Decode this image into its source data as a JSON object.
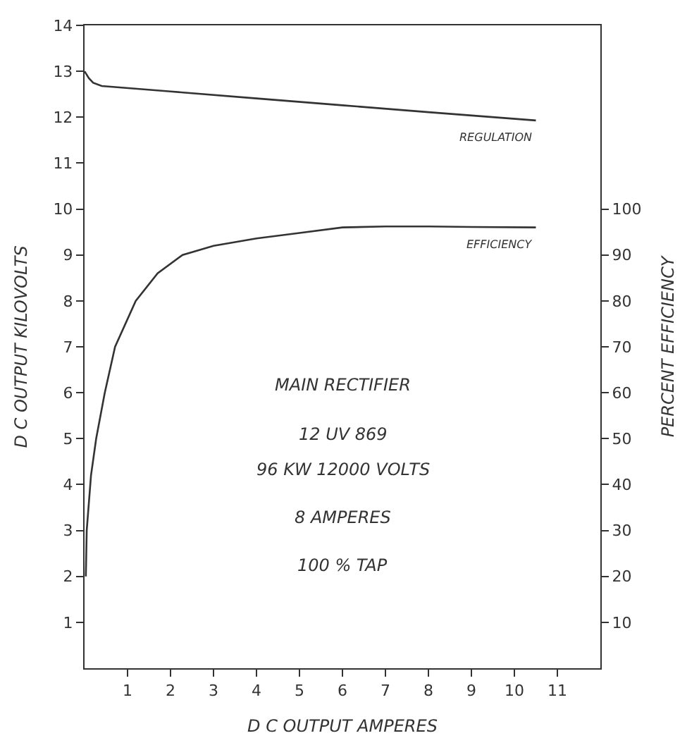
{
  "chart_data": {
    "type": "line",
    "xlabel": "D C OUTPUT AMPERES",
    "ylabel": "D C OUTPUT KILOVOLTS",
    "y2label": "PERCENT EFFICIENCY",
    "series": [
      {
        "name": "REGULATION",
        "color": "#333333",
        "x": [
          0,
          0.1,
          0.2,
          0.4,
          2,
          4,
          6,
          8,
          10.5
        ],
        "values": [
          13.0,
          12.85,
          12.75,
          12.68,
          12.56,
          12.41,
          12.26,
          12.11,
          11.93
        ]
      },
      {
        "name": "EFFICIENCY",
        "color": "#333333",
        "axis": "y2",
        "x": [
          0.03,
          0.05,
          0.15,
          0.27,
          0.47,
          0.71,
          1.19,
          1.7,
          2.28,
          3,
          4,
          5,
          6,
          7,
          8,
          9,
          10.5
        ],
        "values": [
          20,
          30,
          42,
          50,
          60,
          70,
          80,
          86,
          90,
          92,
          93.6,
          94.8,
          96,
          96.2,
          96.2,
          96.1,
          96
        ]
      }
    ],
    "xlim": [
      0,
      12
    ],
    "xticks": [
      1,
      2,
      3,
      4,
      5,
      6,
      7,
      8,
      9,
      10,
      11
    ],
    "ylim": [
      0,
      14
    ],
    "yticks": [
      1,
      2,
      3,
      4,
      5,
      6,
      7,
      8,
      9,
      10,
      11,
      12,
      13,
      14
    ],
    "y2lim": [
      0,
      140
    ],
    "y2ticks": [
      10,
      20,
      30,
      40,
      50,
      60,
      70,
      80,
      90,
      100
    ],
    "annotations": [
      "MAIN RECTIFIER",
      "12 UV 869",
      "96 KW 12000 VOLTS",
      "8 AMPERES",
      "100 % TAP"
    ],
    "legend": false,
    "marker": "none",
    "line_style": "solid"
  }
}
